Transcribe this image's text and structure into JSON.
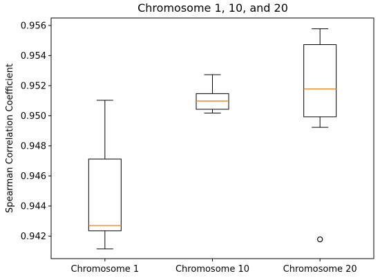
{
  "chart_data": {
    "type": "box",
    "title": "Chromosome 1, 10, and 20",
    "xlabel": "",
    "ylabel": "Spearman Correlation Coefficient",
    "ylim": [
      0.9405,
      0.9565
    ],
    "yticks": [
      0.942,
      0.944,
      0.946,
      0.948,
      0.95,
      0.952,
      0.954,
      0.956
    ],
    "ytick_labels": [
      "0.942",
      "0.944",
      "0.946",
      "0.948",
      "0.950",
      "0.952",
      "0.954",
      "0.956"
    ],
    "grid": false,
    "categories": [
      "Chromosome 1",
      "Chromosome 10",
      "Chromosome 20"
    ],
    "boxes": [
      {
        "whisker_low": 0.94115,
        "q1": 0.94235,
        "median": 0.9427,
        "q3": 0.94712,
        "whisker_high": 0.95103,
        "outliers": []
      },
      {
        "whisker_low": 0.95018,
        "q1": 0.95043,
        "median": 0.95098,
        "q3": 0.95147,
        "whisker_high": 0.95273,
        "outliers": []
      },
      {
        "whisker_low": 0.94923,
        "q1": 0.94993,
        "median": 0.95178,
        "q3": 0.95473,
        "whisker_high": 0.95578,
        "outliers": [
          0.94178
        ]
      }
    ],
    "colors": {
      "box": "#000000",
      "median": "#ff7f0e",
      "outlier": "#000000"
    }
  }
}
